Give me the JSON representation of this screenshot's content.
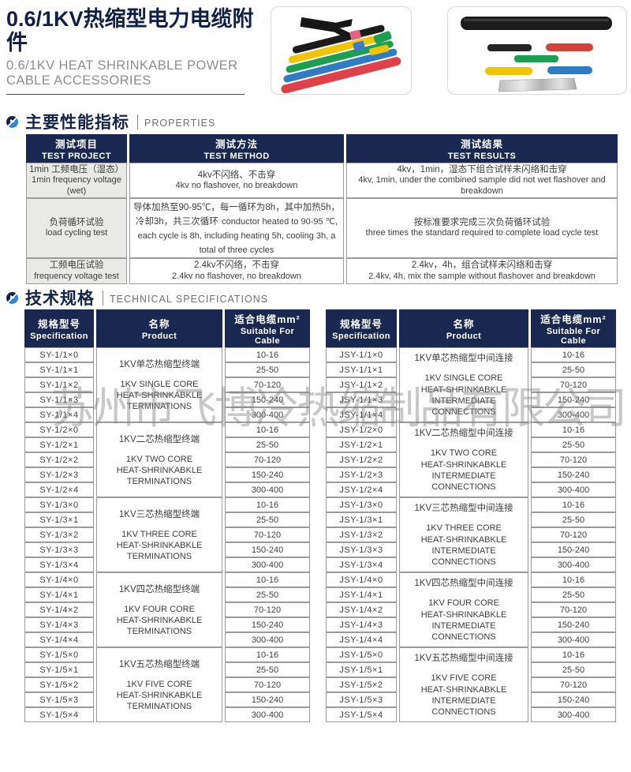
{
  "header": {
    "title_cn": "0.6/1KV热缩型电力电缆附件",
    "title_en_line1": "0.6/1KV HEAT SHRINKABLE POWER",
    "title_en_line2": "CABLE ACCESSORIES"
  },
  "watermark": "苏州市飞博冷热缩制品有限公司",
  "sections": {
    "properties": {
      "title_cn": "主要性能指标",
      "title_en": "PROPERTIES"
    },
    "specs": {
      "title_cn": "技术规格",
      "title_en": "TECHNICAL SPECIFICATIONS"
    }
  },
  "properties_table": {
    "headers": {
      "project_cn": "测试项目",
      "project_en": "TEST PROJECT",
      "method_cn": "测试方法",
      "method_en": "TEST METHOD",
      "result_cn": "测试结果",
      "result_en": "TEST RESULTS"
    },
    "rows": [
      {
        "project_cn": "1min 工频电压（湿态）",
        "project_en": "1min frequency voltage (wet)",
        "method_cn": "4kv不闪络、不击穿",
        "method_en": "4kv no flashover, no breakdown",
        "result_cn": "4kv，1min，湿态下组合试样未闪络和击穿",
        "result_en": "4kv, 1min, under the combined sample did not wet flashover and breakdown"
      },
      {
        "project_cn": "负荷循环试验",
        "project_en": "load cycling test",
        "method_cn": "导体加热至90-95℃，每一循环为8h，其中加热5h，冷却3h，共三次循环",
        "method_en": "conductor heated to 90-95 ℃, each cycle is 8h, including heating 5h, cooling 3h, a total of three cycles",
        "result_cn": "按标准要求完成三次负荷循环试验",
        "result_en": "three times the standard required to complete load cycle test"
      },
      {
        "project_cn": "工频电压试验",
        "project_en": "frequency voltage test",
        "method_cn": "2.4kv不闪络，不击穿",
        "method_en": "2.4kv no flashover, no breakdown",
        "result_cn": "2.4kv，4h，组合试样未闪络和击穿",
        "result_en": "2.4kv, 4h, mix the sample without flashover and breakdown"
      }
    ]
  },
  "spec_headers": {
    "spec_cn": "规格型号",
    "spec_en": "Specification",
    "product_cn": "名称",
    "product_en": "Product",
    "cable_cn": "适合电缆mm²",
    "cable_en": "Suitable For Cable"
  },
  "spec_tables": {
    "left": {
      "groups": [
        {
          "models": [
            "SY-1/1×0",
            "SY-1/1×1",
            "SY-1/1×2",
            "SY-1/1×3",
            "SY-1/1×4"
          ],
          "product_cn": "1KV单芯热缩型终端",
          "product_en": [
            "1KV SINGLE CORE",
            "HEAT-SHRINKABKLE",
            "TERMINATIONS"
          ],
          "cables": [
            "10-16",
            "25-50",
            "70-120",
            "150-240",
            "300-400"
          ]
        },
        {
          "models": [
            "SY-1/2×0",
            "SY-1/2×1",
            "SY-1/2×2",
            "SY-1/2×3",
            "SY-1/2×4"
          ],
          "product_cn": "1KV二芯热缩型终端",
          "product_en": [
            "1KV TWO CORE",
            "HEAT-SHRINKABKLE",
            "TERMINATIONS"
          ],
          "cables": [
            "10-16",
            "25-50",
            "70-120",
            "150-240",
            "300-400"
          ]
        },
        {
          "models": [
            "SY-1/3×0",
            "SY-1/3×1",
            "SY-1/3×2",
            "SY-1/3×3",
            "SY-1/3×4"
          ],
          "product_cn": "1KV三芯热缩型终端",
          "product_en": [
            "1KV THREE CORE",
            "HEAT-SHRINKABKLE",
            "TERMINATIONS"
          ],
          "cables": [
            "10-16",
            "25-50",
            "70-120",
            "150-240",
            "300-400"
          ]
        },
        {
          "models": [
            "SY-1/4×0",
            "SY-1/4×1",
            "SY-1/4×2",
            "SY-1/4×3",
            "SY-1/4×4"
          ],
          "product_cn": "1KV四芯热缩型终端",
          "product_en": [
            "1KV FOUR CORE",
            "HEAT-SHRINKABKLE",
            "TERMINATIONS"
          ],
          "cables": [
            "10-16",
            "25-50",
            "70-120",
            "150-240",
            "300-400"
          ]
        },
        {
          "models": [
            "SY-1/5×0",
            "SY-1/5×1",
            "SY-1/5×2",
            "SY-1/5×3",
            "SY-1/5×4"
          ],
          "product_cn": "1KV五芯热缩型终端",
          "product_en": [
            "1KV FIVE CORE",
            "HEAT-SHRINKABKLE",
            "TERMINATIONS"
          ],
          "cables": [
            "10-16",
            "25-50",
            "70-120",
            "150-240",
            "300-400"
          ]
        }
      ]
    },
    "right": {
      "groups": [
        {
          "models": [
            "JSY-1/1×0",
            "JSY-1/1×1",
            "JSY-1/1×2",
            "JSY-1/1×3",
            "JSY-1/1×4"
          ],
          "product_cn": "1KV单芯热缩型中间连接",
          "product_en": [
            "1KV SINGLE CORE",
            "HEAT-SHRINKABKLE",
            "INTERMEDIATE CONNECTIONS"
          ],
          "cables": [
            "10-16",
            "25-50",
            "70-120",
            "150-240",
            "300-400"
          ]
        },
        {
          "models": [
            "JSY-1/2×0",
            "JSY-1/2×1",
            "JSY-1/2×2",
            "JSY-1/2×3",
            "JSY-1/2×4"
          ],
          "product_cn": "1KV二芯热缩型中间连接",
          "product_en": [
            "1KV TWO CORE",
            "HEAT-SHRINKABKLE",
            "INTERMEDIATE CONNECTIONS"
          ],
          "cables": [
            "10-16",
            "25-50",
            "70-120",
            "150-240",
            "300-400"
          ]
        },
        {
          "models": [
            "JSY-1/3×0",
            "JSY-1/3×1",
            "JSY-1/3×2",
            "JSY-1/3×3",
            "JSY-1/3×4"
          ],
          "product_cn": "1KV三芯热缩型中间连接",
          "product_en": [
            "1KV THREE CORE",
            "HEAT-SHRINKABKLE",
            "INTERMEDIATE CONNECTIONS"
          ],
          "cables": [
            "10-16",
            "25-50",
            "70-120",
            "150-240",
            "300-400"
          ]
        },
        {
          "models": [
            "JSY-1/4×0",
            "JSY-1/4×1",
            "JSY-1/4×2",
            "JSY-1/4×3",
            "JSY-1/4×4"
          ],
          "product_cn": "1KV四芯热缩型中间连接",
          "product_en": [
            "1KV FOUR CORE",
            "HEAT-SHRINKABKLE",
            "INTERMEDIATE CONNECTIONS"
          ],
          "cables": [
            "10-16",
            "25-50",
            "70-120",
            "150-240",
            "300-400"
          ]
        },
        {
          "models": [
            "JSY-1/5×0",
            "JSY-1/5×1",
            "JSY-1/5×2",
            "JSY-1/5×3",
            "JSY-1/5×4"
          ],
          "product_cn": "1KV五芯热缩型中间连接",
          "product_en": [
            "1KV FIVE CORE",
            "HEAT-SHRINKABKLE",
            "INTERMEDIATE CONNECTIONS"
          ],
          "cables": [
            "10-16",
            "25-50",
            "70-120",
            "150-240",
            "300-400"
          ]
        }
      ]
    }
  }
}
